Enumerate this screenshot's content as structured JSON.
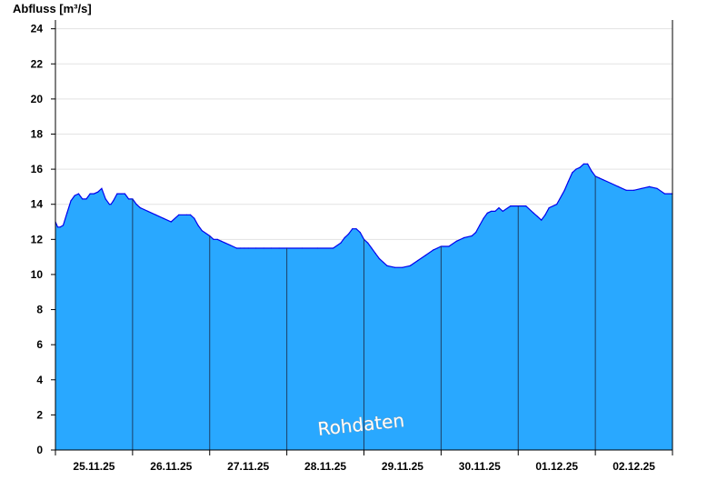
{
  "chart_data": {
    "type": "area",
    "ylabel": "Abfluss [m³/s]",
    "xlabel": "",
    "title": "",
    "watermark": "Rohdaten",
    "ylim": [
      0,
      24.5
    ],
    "yticks": [
      0,
      2,
      4,
      6,
      8,
      10,
      12,
      14,
      16,
      18,
      20,
      22,
      24
    ],
    "xlim": [
      0,
      8
    ],
    "day_labels": [
      "25.11.25",
      "26.11.25",
      "27.11.25",
      "28.11.25",
      "29.11.25",
      "30.11.25",
      "01.12.25",
      "02.12.25"
    ],
    "grid": "horizontal",
    "fill_color": "#29a8ff",
    "line_color": "#0000ee",
    "series": [
      {
        "x": [
          0.0,
          0.03,
          0.06,
          0.1,
          0.15,
          0.2,
          0.25,
          0.3,
          0.35,
          0.4,
          0.45,
          0.5,
          0.55,
          0.6,
          0.65,
          0.7,
          0.72,
          0.75,
          0.8,
          0.85,
          0.9,
          0.95,
          1.0,
          1.05,
          1.1,
          1.15,
          1.2,
          1.3,
          1.4,
          1.5,
          1.6,
          1.7,
          1.75,
          1.8,
          1.85,
          1.9,
          2.0,
          2.05,
          2.1,
          2.15,
          2.2,
          2.3,
          2.35,
          2.4,
          2.45,
          2.5,
          2.6,
          2.7,
          2.8,
          2.9,
          3.0,
          3.2,
          3.4,
          3.6,
          3.7,
          3.75,
          3.8,
          3.85,
          3.9,
          3.95,
          4.0,
          4.05,
          4.1,
          4.15,
          4.2,
          4.25,
          4.3,
          4.4,
          4.5,
          4.6,
          4.7,
          4.8,
          4.9,
          4.95,
          5.0,
          5.1,
          5.2,
          5.3,
          5.4,
          5.45,
          5.5,
          5.55,
          5.6,
          5.65,
          5.7,
          5.75,
          5.8,
          5.9,
          6.0,
          6.1,
          6.2,
          6.25,
          6.3,
          6.35,
          6.4,
          6.5,
          6.6,
          6.65,
          6.7,
          6.75,
          6.8,
          6.85,
          6.9,
          6.95,
          7.0,
          7.05,
          7.1,
          7.2,
          7.3,
          7.4,
          7.5,
          7.6,
          7.7,
          7.8,
          7.9,
          8.0
        ],
        "values": [
          13.0,
          12.7,
          12.7,
          12.8,
          13.5,
          14.2,
          14.5,
          14.6,
          14.3,
          14.3,
          14.6,
          14.6,
          14.7,
          14.9,
          14.3,
          14.0,
          14.0,
          14.2,
          14.6,
          14.6,
          14.6,
          14.3,
          14.3,
          14.0,
          13.8,
          13.7,
          13.6,
          13.4,
          13.2,
          13.0,
          13.4,
          13.4,
          13.4,
          13.2,
          12.8,
          12.5,
          12.2,
          12.0,
          12.0,
          11.9,
          11.8,
          11.6,
          11.5,
          11.5,
          11.5,
          11.5,
          11.5,
          11.5,
          11.5,
          11.5,
          11.5,
          11.5,
          11.5,
          11.5,
          11.8,
          12.1,
          12.3,
          12.6,
          12.6,
          12.4,
          12.0,
          11.8,
          11.5,
          11.2,
          10.9,
          10.7,
          10.5,
          10.4,
          10.4,
          10.5,
          10.8,
          11.1,
          11.4,
          11.5,
          11.6,
          11.6,
          11.9,
          12.1,
          12.2,
          12.4,
          12.8,
          13.2,
          13.5,
          13.6,
          13.6,
          13.8,
          13.6,
          13.9,
          13.9,
          13.9,
          13.5,
          13.3,
          13.1,
          13.4,
          13.8,
          14.0,
          14.8,
          15.3,
          15.8,
          16.0,
          16.1,
          16.3,
          16.3,
          15.9,
          15.6,
          15.5,
          15.4,
          15.2,
          15.0,
          14.8,
          14.8,
          14.9,
          15.0,
          14.9,
          14.6,
          14.6
        ]
      }
    ]
  }
}
